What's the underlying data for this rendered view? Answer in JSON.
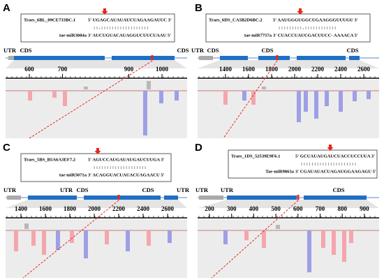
{
  "panels": [
    {
      "label": "A",
      "transcript": "Traes_6BL_09CE733BC.1",
      "target": "5' UGAGCAUAUAUCUAGAAGAUUC  3'",
      "pairing": ": : . : : : : : : : : : : : : : : : : : :",
      "mirna": "tae-miR3084a",
      "mirna_seq": "3' AUCUGUACAUAGGUCUUCUAAU  5'",
      "gene_labels": [
        "UTR",
        "CDS",
        "CDS"
      ],
      "ticks": [
        600,
        700,
        900,
        1000
      ]
    },
    {
      "label": "B",
      "transcript": "Traes_6DS_CA5B2D6BC.2",
      "target": "5' AAUGGGUGGCUGAAGGGUUUGU 3'",
      "pairing": ": : : : : : : : : . : : : : : :   : : : : : :",
      "mirna": "tae-miR7757a",
      "mirna_seq": "3' CUACCUAUCGACUUCC- AAAACA 5'",
      "gene_labels": [
        "UTR",
        "CDS",
        "CDS",
        "CDS"
      ],
      "ticks": [
        1400,
        1600,
        1800,
        2000,
        2200,
        2400,
        2600
      ]
    },
    {
      "label": "C",
      "transcript": "Traes_5BS_B5A6A3EF7.2",
      "target": "5' AGUCCAUGAUAUGAUCUUGA 3'",
      "pairing": ": : : : : : : : : : : : : : : : : : : :",
      "mirna": "tae-miR5071a",
      "mirna_seq": "3' ACAGGUACUAUACUAGAACU 5'",
      "gene_labels": [
        "UTR",
        "UTR",
        "CDS",
        "CDS",
        "UTR"
      ],
      "ticks": [
        1400,
        1600,
        1800,
        2000,
        2200,
        2400,
        2600
      ]
    },
    {
      "label": "D",
      "transcript": "Traes_1DS_52539E9F6.1",
      "target": "5' GCUAUAUGAUCUACCUCCUUA 3'",
      "pairing": ": : : : : : : : : : : : : : : : : : : : :",
      "mirna": "Tae-miR9863a",
      "mirna_seq": "3' CGAUAUACUAGAUGGAAGAGU 5'",
      "gene_labels": [
        "UTR",
        "UTR",
        "CDS"
      ],
      "ticks": [
        200,
        300,
        400,
        500,
        600,
        700,
        800,
        900
      ]
    }
  ]
}
